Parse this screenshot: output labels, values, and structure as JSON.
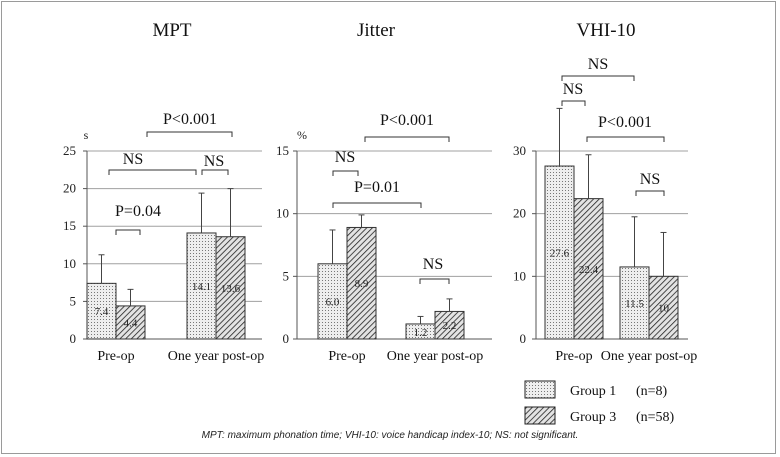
{
  "chart_data": [
    {
      "type": "bar",
      "title": "MPT",
      "unit": "s",
      "ylim": [
        0,
        25
      ],
      "yticks": [
        "0",
        "5",
        "10",
        "15",
        "20",
        "25"
      ],
      "categories": [
        "Pre-op",
        "One year post-op"
      ],
      "series": [
        {
          "name": "Group 1 (n=8)",
          "values": [
            7.4,
            14.1
          ],
          "errors": [
            3.8,
            5.3
          ],
          "labels": [
            "7.4",
            "14.1"
          ]
        },
        {
          "name": "Group 3 (n=58)",
          "values": [
            4.4,
            13.6
          ],
          "errors": [
            2.2,
            6.4
          ],
          "labels": [
            "4.4",
            "13.6"
          ]
        }
      ],
      "annotations": [
        {
          "text": "P=0.04",
          "kind": "within-category",
          "category": 0
        },
        {
          "text": "NS",
          "kind": "within-category",
          "category": 1
        },
        {
          "text": "NS",
          "kind": "between-categories",
          "series": 0
        },
        {
          "text": "P<0.001",
          "kind": "between-categories",
          "series": 1
        }
      ]
    },
    {
      "type": "bar",
      "title": "Jitter",
      "unit": "%",
      "ylim": [
        0,
        15
      ],
      "yticks": [
        "0",
        "5",
        "10",
        "15"
      ],
      "categories": [
        "Pre-op",
        "One year post-op"
      ],
      "series": [
        {
          "name": "Group 1 (n=8)",
          "values": [
            6.0,
            1.2
          ],
          "errors": [
            2.7,
            0.6
          ],
          "labels": [
            "6.0",
            "1.2"
          ]
        },
        {
          "name": "Group 3 (n=58)",
          "values": [
            8.9,
            2.2
          ],
          "errors": [
            1.0,
            1.0
          ],
          "labels": [
            "8.9",
            "2.2"
          ]
        }
      ],
      "annotations": [
        {
          "text": "NS",
          "kind": "within-category",
          "category": 0
        },
        {
          "text": "NS",
          "kind": "within-category",
          "category": 1
        },
        {
          "text": "P=0.01",
          "kind": "between-categories",
          "series": 0
        },
        {
          "text": "P<0.001",
          "kind": "between-categories",
          "series": 1
        }
      ]
    },
    {
      "type": "bar",
      "title": "VHI-10",
      "unit": "",
      "ylim": [
        0,
        30
      ],
      "yticks": [
        "0",
        "10",
        "20",
        "30"
      ],
      "categories": [
        "Pre-op",
        "One year post-op"
      ],
      "series": [
        {
          "name": "Group 1 (n=8)",
          "values": [
            27.6,
            11.5
          ],
          "errors": [
            9.2,
            8.0
          ],
          "labels": [
            "27.6",
            "11.5"
          ]
        },
        {
          "name": "Group 3 (n=58)",
          "values": [
            22.4,
            10
          ],
          "errors": [
            7.0,
            7.0
          ],
          "labels": [
            "22.4",
            "10"
          ]
        }
      ],
      "annotations": [
        {
          "text": "NS",
          "kind": "within-category",
          "category": 0
        },
        {
          "text": "NS",
          "kind": "within-category",
          "category": 1
        },
        {
          "text": "NS",
          "kind": "between-categories",
          "series": 0
        },
        {
          "text": "P<0.001",
          "kind": "between-categories",
          "series": 1
        }
      ]
    }
  ],
  "legend": {
    "items": [
      {
        "label": "Group 1",
        "n": "(n=8)",
        "pattern": "dots"
      },
      {
        "label": "Group 3",
        "n": "(n=58)",
        "pattern": "hatch"
      }
    ]
  },
  "caption": "MPT: maximum phonation time; VHI-10: voice handicap index-10; NS: not significant."
}
